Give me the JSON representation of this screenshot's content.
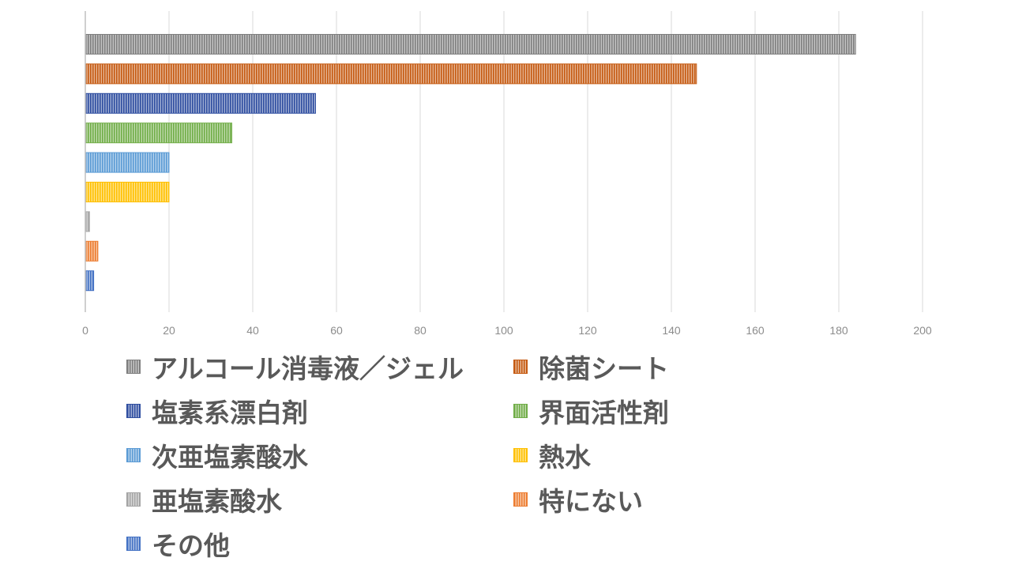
{
  "chart_data": {
    "type": "bar",
    "orientation": "horizontal",
    "title": "",
    "xlabel": "",
    "ylabel": "",
    "xlim": [
      0,
      200
    ],
    "x_ticks": [
      0,
      20,
      40,
      60,
      80,
      100,
      120,
      140,
      160,
      180,
      200
    ],
    "grid": "vertical lines on",
    "legend_position": "bottom",
    "series": [
      {
        "name": "アルコール消毒液／ジェル",
        "value": 184,
        "color": "#7f7f7f"
      },
      {
        "name": "除菌シート",
        "value": 146,
        "color": "#c55a11"
      },
      {
        "name": "塩素系漂白剤",
        "value": 55,
        "color": "#2f4ea0"
      },
      {
        "name": "界面活性剤",
        "value": 35,
        "color": "#70ad47"
      },
      {
        "name": "次亜塩素酸水",
        "value": 20,
        "color": "#5b9bd5"
      },
      {
        "name": "熱水",
        "value": 20,
        "color": "#ffc000"
      },
      {
        "name": "亜塩素酸水",
        "value": 1,
        "color": "#a5a5a5"
      },
      {
        "name": "特にない",
        "value": 3,
        "color": "#ed7d31"
      },
      {
        "name": "その他",
        "value": 2,
        "color": "#4472c4"
      }
    ]
  }
}
